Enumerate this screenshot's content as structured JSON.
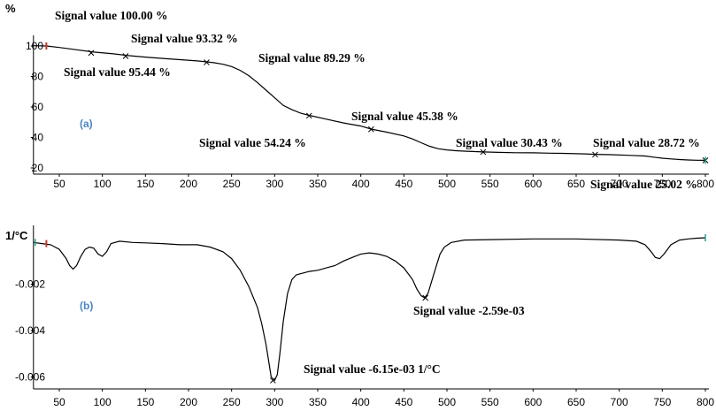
{
  "chart_data": [
    {
      "type": "line",
      "panel_label": "(a)",
      "ylabel": "%",
      "xlim": [
        20,
        800
      ],
      "ylim": [
        18,
        108
      ],
      "xticks": [
        "50",
        "100",
        "150",
        "200",
        "250",
        "300",
        "350",
        "400",
        "450",
        "500",
        "550",
        "600",
        "650",
        "700",
        "750",
        "800"
      ],
      "yticks": [
        "20",
        "40",
        "60",
        "80",
        "100"
      ],
      "series": [
        {
          "x": [
            20,
            35,
            50,
            70,
            90,
            110,
            130,
            150,
            170,
            190,
            210,
            220,
            230,
            240,
            250,
            260,
            270,
            280,
            290,
            300,
            310,
            320,
            330,
            340,
            360,
            380,
            400,
            412,
            430,
            450,
            460,
            470,
            480,
            490,
            500,
            510,
            520,
            542,
            560,
            580,
            600,
            620,
            640,
            660,
            672,
            690,
            710,
            730,
            740,
            750,
            760,
            770,
            780,
            790,
            800
          ],
          "y": [
            100.2,
            100,
            99,
            97.5,
            96,
            95,
            93.7,
            92.7,
            91.8,
            91,
            90.2,
            89.6,
            89,
            88,
            86.5,
            84,
            80.5,
            76,
            71,
            66,
            61,
            58.2,
            56,
            54.5,
            52,
            49.5,
            47.5,
            45.5,
            43.5,
            41,
            39,
            36.5,
            34.2,
            32.6,
            31.8,
            31.3,
            31,
            30.5,
            30.2,
            30,
            29.9,
            29.7,
            29.5,
            29.2,
            28.9,
            28.7,
            28.3,
            27.8,
            27.1,
            26.4,
            25.9,
            25.5,
            25.2,
            25.05,
            25.0
          ]
        }
      ],
      "markers": [
        {
          "x": 35,
          "y": 100.0,
          "label": "Signal value 100.00 %"
        },
        {
          "x": 127,
          "y": 93.32,
          "label": "Signal value 93.32 %"
        },
        {
          "x": 87,
          "y": 95.44,
          "label": "Signal value 95.44 %"
        },
        {
          "x": 221,
          "y": 89.29,
          "label": "Signal value 89.29 %"
        },
        {
          "x": 340,
          "y": 54.24,
          "label": "Signal value 54.24 %"
        },
        {
          "x": 412,
          "y": 45.38,
          "label": "Signal value 45.38 %"
        },
        {
          "x": 542,
          "y": 30.43,
          "label": "Signal value 30.43 %"
        },
        {
          "x": 672,
          "y": 28.72,
          "label": "Signal value 28.72 %"
        },
        {
          "x": 800,
          "y": 25.02,
          "label": "Signal value 25.02 %"
        }
      ]
    },
    {
      "type": "line",
      "panel_label": "(b)",
      "ylabel": "1/°C",
      "xlim": [
        20,
        800
      ],
      "ylim": [
        -0.0067,
        0.0002
      ],
      "xticks": [
        "50",
        "100",
        "150",
        "200",
        "250",
        "300",
        "350",
        "400",
        "450",
        "500",
        "550",
        "600",
        "650",
        "700",
        "750",
        "800"
      ],
      "yticks": [
        "-0.002",
        "-0.004",
        "-0.006"
      ],
      "series": [
        {
          "x": [
            20,
            30,
            40,
            50,
            58,
            62,
            66,
            70,
            75,
            80,
            85,
            90,
            95,
            100,
            105,
            110,
            120,
            135,
            150,
            170,
            190,
            210,
            225,
            240,
            250,
            260,
            270,
            280,
            285,
            290,
            293,
            296,
            300,
            303,
            306,
            310,
            315,
            320,
            325,
            330,
            335,
            340,
            350,
            360,
            370,
            380,
            390,
            400,
            410,
            420,
            430,
            440,
            450,
            460,
            465,
            470,
            474,
            478,
            482,
            487,
            492,
            497,
            505,
            520,
            550,
            600,
            650,
            700,
            720,
            730,
            737,
            742,
            747,
            752,
            760,
            770,
            780,
            790,
            800
          ],
          "y": [
            -0.0002,
            -0.00025,
            -0.0003,
            -0.0005,
            -0.0009,
            -0.0012,
            -0.00135,
            -0.0012,
            -0.0008,
            -0.0005,
            -0.0004,
            -0.00045,
            -0.0007,
            -0.0008,
            -0.0006,
            -0.00025,
            -0.00015,
            -0.0002,
            -0.00022,
            -0.00025,
            -0.0003,
            -0.0003,
            -0.0004,
            -0.0006,
            -0.0009,
            -0.0014,
            -0.0021,
            -0.003,
            -0.0037,
            -0.0046,
            -0.0053,
            -0.006,
            -0.00615,
            -0.0059,
            -0.005,
            -0.0036,
            -0.0024,
            -0.0018,
            -0.0016,
            -0.00155,
            -0.0015,
            -0.00145,
            -0.0014,
            -0.0013,
            -0.0012,
            -0.001,
            -0.00085,
            -0.0007,
            -0.00065,
            -0.0007,
            -0.0008,
            -0.001,
            -0.0013,
            -0.0018,
            -0.0022,
            -0.0025,
            -0.00259,
            -0.0024,
            -0.0019,
            -0.0013,
            -0.0007,
            -0.0004,
            -0.0002,
            -0.0001,
            -8e-05,
            -5e-05,
            -5e-05,
            -0.0001,
            -0.00015,
            -0.0003,
            -0.0006,
            -0.00085,
            -0.0009,
            -0.0007,
            -0.0003,
            -0.0001,
            -5e-05,
            -2e-05,
            0.0
          ]
        }
      ],
      "markers": [
        {
          "x": 35,
          "y": -0.00025,
          "label": ""
        },
        {
          "x": 475,
          "y": -0.00259,
          "label": "Signal value -2.59e-03"
        },
        {
          "x": 298,
          "y": -0.00615,
          "label": "Signal value -6.15e-03 1/°C"
        }
      ]
    }
  ]
}
